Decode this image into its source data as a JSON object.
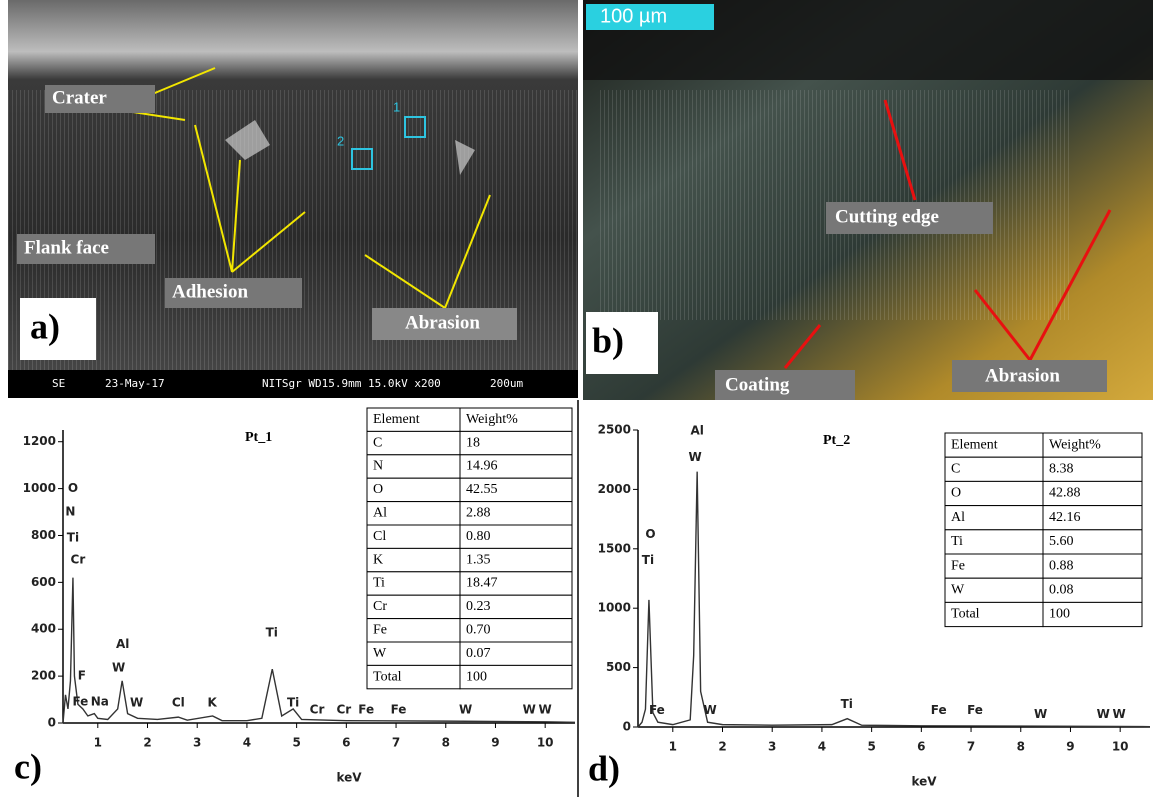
{
  "panel_a": {
    "label": "a)",
    "annotations": [
      "Crater",
      "Flank face",
      "Adhesion",
      "Abrasion"
    ],
    "regions": [
      "1",
      "2"
    ],
    "footer": [
      "SE",
      "23-May-17",
      "NITSgr WD15.9mm 15.0kV x200",
      "200um"
    ]
  },
  "panel_b": {
    "label": "b)",
    "scale_bar": "100 µm",
    "annotations": [
      "Cutting edge",
      "Coating",
      "Abrasion"
    ]
  },
  "chart_data": [
    {
      "type": "line",
      "panel_label": "c)",
      "title": "Pt_1",
      "xlabel": "keV",
      "color": "#333333",
      "x": [
        0.3,
        0.35,
        0.4,
        0.45,
        0.5,
        0.53,
        0.6,
        0.7,
        0.8,
        0.93,
        1.0,
        1.2,
        1.4,
        1.49,
        1.6,
        1.8,
        2.2,
        2.62,
        2.8,
        3.31,
        3.5,
        4.0,
        4.3,
        4.51,
        4.7,
        4.93,
        5.1,
        6.0,
        8.0,
        10.0,
        10.6
      ],
      "values": [
        0,
        120,
        60,
        180,
        620,
        200,
        80,
        60,
        30,
        40,
        20,
        15,
        60,
        180,
        40,
        20,
        15,
        25,
        12,
        30,
        10,
        10,
        20,
        230,
        30,
        60,
        15,
        10,
        8,
        5,
        3
      ],
      "xlim": [
        0.3,
        10.6
      ],
      "ylim": [
        0,
        1250
      ],
      "xticks": [
        1,
        2,
        3,
        4,
        5,
        6,
        7,
        8,
        9,
        10
      ],
      "yticks": [
        0,
        200,
        400,
        600,
        800,
        1000,
        1200
      ],
      "peak_labels": [
        {
          "text": "O",
          "x": 0.5,
          "y": 1000
        },
        {
          "text": "N",
          "x": 0.45,
          "y": 900
        },
        {
          "text": "Ti",
          "x": 0.5,
          "y": 790
        },
        {
          "text": "Cr",
          "x": 0.6,
          "y": 695
        },
        {
          "text": "F",
          "x": 0.68,
          "y": 200
        },
        {
          "text": "Fe",
          "x": 0.65,
          "y": 90
        },
        {
          "text": "Na",
          "x": 1.04,
          "y": 90
        },
        {
          "text": "Al",
          "x": 1.5,
          "y": 335
        },
        {
          "text": "W",
          "x": 1.42,
          "y": 235
        },
        {
          "text": "W",
          "x": 1.78,
          "y": 85
        },
        {
          "text": "Cl",
          "x": 2.62,
          "y": 85
        },
        {
          "text": "K",
          "x": 3.3,
          "y": 85
        },
        {
          "text": "Ti",
          "x": 4.5,
          "y": 383
        },
        {
          "text": "Ti",
          "x": 4.93,
          "y": 85
        },
        {
          "text": "Cr",
          "x": 5.41,
          "y": 55
        },
        {
          "text": "Cr",
          "x": 5.95,
          "y": 55
        },
        {
          "text": "Fe",
          "x": 6.4,
          "y": 55
        },
        {
          "text": "Fe",
          "x": 7.05,
          "y": 55
        },
        {
          "text": "W",
          "x": 8.4,
          "y": 55
        },
        {
          "text": "W",
          "x": 9.68,
          "y": 55
        },
        {
          "text": "W",
          "x": 10.0,
          "y": 55
        }
      ],
      "table": {
        "columns": [
          "Element",
          "Weight%"
        ],
        "rows": [
          [
            "C",
            "18"
          ],
          [
            "N",
            "14.96"
          ],
          [
            "O",
            "42.55"
          ],
          [
            "Al",
            "2.88"
          ],
          [
            "Cl",
            "0.80"
          ],
          [
            "K",
            "1.35"
          ],
          [
            "Ti",
            "18.47"
          ],
          [
            "Cr",
            "0.23"
          ],
          [
            "Fe",
            "0.70"
          ],
          [
            "W",
            "0.07"
          ],
          [
            "Total",
            "100"
          ]
        ]
      }
    },
    {
      "type": "line",
      "panel_label": "d)",
      "title": "Pt_2",
      "xlabel": "keV",
      "color": "#333333",
      "x": [
        0.3,
        0.38,
        0.45,
        0.52,
        0.6,
        0.7,
        1.0,
        1.35,
        1.42,
        1.49,
        1.56,
        1.7,
        2.0,
        3.0,
        4.2,
        4.51,
        4.8,
        6.0,
        8.0,
        10.0,
        10.6
      ],
      "values": [
        0,
        40,
        150,
        1070,
        120,
        40,
        20,
        60,
        600,
        2150,
        300,
        40,
        20,
        15,
        20,
        70,
        15,
        10,
        8,
        5,
        3
      ],
      "xlim": [
        0.3,
        10.6
      ],
      "ylim": [
        0,
        2500
      ],
      "xticks": [
        1,
        2,
        3,
        4,
        5,
        6,
        7,
        8,
        9,
        10
      ],
      "yticks": [
        0,
        500,
        1000,
        1500,
        2000,
        2500
      ],
      "peak_labels": [
        {
          "text": "Al",
          "x": 1.49,
          "y": 2490
        },
        {
          "text": "W",
          "x": 1.45,
          "y": 2270
        },
        {
          "text": "O",
          "x": 0.55,
          "y": 1620
        },
        {
          "text": "Ti",
          "x": 0.5,
          "y": 1400
        },
        {
          "text": "Fe",
          "x": 0.68,
          "y": 140
        },
        {
          "text": "W",
          "x": 1.75,
          "y": 140
        },
        {
          "text": "Ti",
          "x": 4.5,
          "y": 190
        },
        {
          "text": "Fe",
          "x": 6.35,
          "y": 140
        },
        {
          "text": "Fe",
          "x": 7.08,
          "y": 140
        },
        {
          "text": "W",
          "x": 8.4,
          "y": 105
        },
        {
          "text": "W",
          "x": 9.66,
          "y": 105
        },
        {
          "text": "W",
          "x": 9.98,
          "y": 105
        }
      ],
      "table": {
        "columns": [
          "Element",
          "Weight%"
        ],
        "rows": [
          [
            "C",
            "8.38"
          ],
          [
            "O",
            "42.88"
          ],
          [
            "Al",
            "42.16"
          ],
          [
            "Ti",
            "5.60"
          ],
          [
            "Fe",
            "0.88"
          ],
          [
            "W",
            "0.08"
          ],
          [
            "Total",
            "100"
          ]
        ]
      }
    }
  ]
}
